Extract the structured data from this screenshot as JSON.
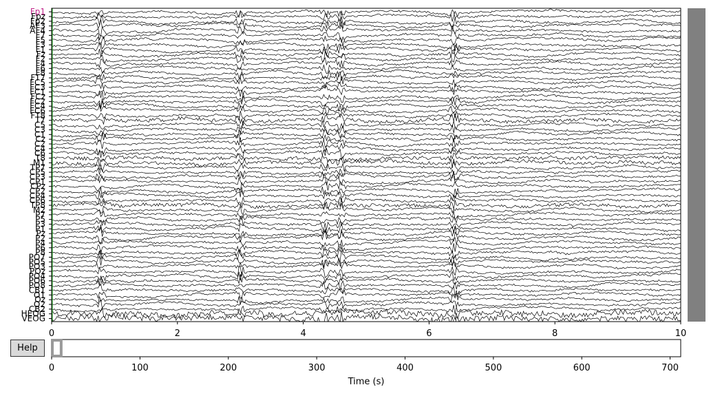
{
  "help_label": "Help",
  "chart_data": {
    "type": "line",
    "channels": [
      "Fp1",
      "Fpz",
      "Fp2",
      "AF3",
      "AF4",
      "F7",
      "F5",
      "F3",
      "F1",
      "Fz",
      "F2",
      "F4",
      "F6",
      "F8",
      "FT7",
      "FC5",
      "FC3",
      "FC1",
      "FCz",
      "FC2",
      "FC4",
      "FC6",
      "FT8",
      "T7",
      "C5",
      "C3",
      "C1",
      "Cz",
      "C2",
      "C4",
      "C6",
      "T8",
      "M1",
      "TP7",
      "CP5",
      "CP3",
      "CP1",
      "CPz",
      "CP2",
      "CP4",
      "CP6",
      "TP8",
      "M2",
      "P7",
      "P5",
      "P3",
      "P1",
      "Pz",
      "P2",
      "P4",
      "P6",
      "P8",
      "PO7",
      "PO5",
      "PO3",
      "POz",
      "PO4",
      "PO6",
      "PO8",
      "CB1",
      "O1",
      "Oz",
      "O2",
      "CB2",
      "HEOG",
      "VEOG"
    ],
    "main_axis": {
      "xlim": [
        0,
        10
      ],
      "xticks": [
        0,
        2,
        4,
        6,
        8,
        10
      ],
      "xlabel": "",
      "ylabel": ""
    },
    "overview_axis": {
      "xlim": [
        0,
        712
      ],
      "xticks": [
        0,
        100,
        200,
        300,
        400,
        500,
        600,
        700
      ],
      "xlabel": "Time (s)",
      "view_window": [
        0,
        10
      ]
    },
    "grid": false,
    "colors": {
      "trace": "#000000",
      "first_label": "#c2268b",
      "event_marker": "#2ca02c",
      "scrollbar": "#808080",
      "button": "#d9d9d9"
    }
  }
}
